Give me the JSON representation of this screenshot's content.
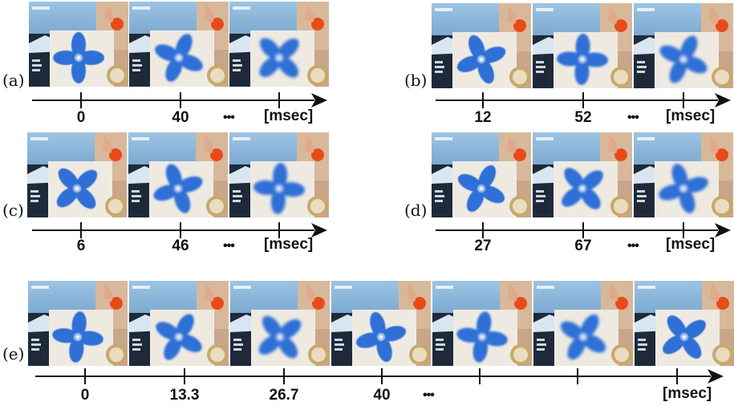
{
  "panels": [
    {
      "label": "(a)",
      "ticks": [
        "0",
        "40",
        "",
        ""
      ],
      "ellipsis": "•••",
      "unit": "[msec]",
      "frames": 3
    },
    {
      "label": "(b)",
      "ticks": [
        "12",
        "52",
        "",
        ""
      ],
      "ellipsis": "•••",
      "unit": "[msec]",
      "frames": 3
    },
    {
      "label": "(c)",
      "ticks": [
        "6",
        "46",
        "",
        ""
      ],
      "ellipsis": "•••",
      "unit": "[msec]",
      "frames": 3
    },
    {
      "label": "(d)",
      "ticks": [
        "27",
        "67",
        "",
        ""
      ],
      "ellipsis": "•••",
      "unit": "[msec]",
      "frames": 3
    },
    {
      "label": "(e)",
      "ticks": [
        "0",
        "13.3",
        "26.7",
        "40",
        "",
        "",
        ""
      ],
      "ellipsis": "•••",
      "unit": "[msec]",
      "frames": 7
    }
  ],
  "colors": {
    "fan": "#2f6fd6",
    "fan_light": "#9fc0ee",
    "ball": "#e84a1a",
    "poster_sky": "#4a7fb0",
    "poster_dark": "#1e2a3a",
    "wall": "#c9a68a",
    "axis": "#111111"
  }
}
